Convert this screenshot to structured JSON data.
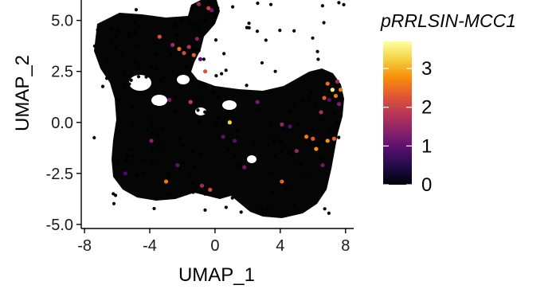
{
  "chart_data": {
    "type": "scatter",
    "xlabel": "UMAP_1",
    "ylabel": "UMAP_2",
    "xlim": [
      -8.2,
      8.5
    ],
    "ylim": [
      -5.2,
      6.0
    ],
    "x_ticks": [
      -8,
      -4,
      0,
      4,
      8
    ],
    "x_tick_labels": [
      "-8",
      "-4",
      "0",
      "4",
      "8"
    ],
    "y_ticks": [
      -5.0,
      -2.5,
      0.0,
      2.5,
      5.0
    ],
    "y_tick_labels": [
      "-5.0",
      "-2.5",
      "0.0",
      "2.5",
      "5.0"
    ],
    "grid": false,
    "background_point_color": "#000000",
    "colorbar": {
      "title": "pRRLSIN-MCC1",
      "min": 0,
      "max": 3.7,
      "ticks": [
        0,
        1,
        2,
        3
      ],
      "tick_labels": [
        "0",
        "1",
        "2",
        "3"
      ],
      "colors": [
        "#000004",
        "#1f0c48",
        "#550f6d",
        "#88226a",
        "#ba3655",
        "#e35933",
        "#f98e09",
        "#f4d142",
        "#fcffa4"
      ]
    },
    "expressing_points": [
      {
        "x": -3.4,
        "y": 4.2,
        "value": 2.2
      },
      {
        "x": -2.6,
        "y": 3.8,
        "value": 1.6
      },
      {
        "x": -2.2,
        "y": 3.6,
        "value": 2.5
      },
      {
        "x": -1.9,
        "y": 3.4,
        "value": 2.1
      },
      {
        "x": -1.6,
        "y": 3.7,
        "value": 1.8
      },
      {
        "x": -1.3,
        "y": 3.3,
        "value": 2.4
      },
      {
        "x": -1.1,
        "y": 4.1,
        "value": 1.4
      },
      {
        "x": -0.9,
        "y": 3.1,
        "value": 1.0
      },
      {
        "x": -0.6,
        "y": 2.5,
        "value": 2.2
      },
      {
        "x": -1.0,
        "y": 5.8,
        "value": 1.5
      },
      {
        "x": -0.4,
        "y": 5.6,
        "value": 2.0
      },
      {
        "x": -0.2,
        "y": 5.5,
        "value": 1.2
      },
      {
        "x": -2.8,
        "y": 1.1,
        "value": 1.3
      },
      {
        "x": -1.5,
        "y": 1.0,
        "value": 1.9
      },
      {
        "x": 0.9,
        "y": 0.0,
        "value": 3.3
      },
      {
        "x": 0.5,
        "y": -0.7,
        "value": 1.0
      },
      {
        "x": 1.2,
        "y": -0.9,
        "value": 0.9
      },
      {
        "x": 2.6,
        "y": 1.0,
        "value": 1.2
      },
      {
        "x": 4.1,
        "y": -0.1,
        "value": 1.5
      },
      {
        "x": 4.6,
        "y": -0.2,
        "value": 0.9
      },
      {
        "x": 5.0,
        "y": -1.4,
        "value": 1.5
      },
      {
        "x": 5.6,
        "y": -0.7,
        "value": 2.6
      },
      {
        "x": 6.0,
        "y": -0.8,
        "value": 2.3
      },
      {
        "x": 6.2,
        "y": -1.3,
        "value": 2.8
      },
      {
        "x": 6.5,
        "y": 0.5,
        "value": 1.7
      },
      {
        "x": 6.7,
        "y": 1.2,
        "value": 2.3
      },
      {
        "x": 6.9,
        "y": 1.9,
        "value": 2.5
      },
      {
        "x": 7.0,
        "y": 1.1,
        "value": 0.9
      },
      {
        "x": 7.2,
        "y": 1.6,
        "value": 3.6
      },
      {
        "x": 7.4,
        "y": 1.3,
        "value": 2.6
      },
      {
        "x": 7.6,
        "y": 0.9,
        "value": 1.3
      },
      {
        "x": 7.7,
        "y": 1.6,
        "value": 2.6
      },
      {
        "x": 7.5,
        "y": 2.0,
        "value": 1.6
      },
      {
        "x": 7.3,
        "y": -0.8,
        "value": 2.4
      },
      {
        "x": 6.6,
        "y": -2.1,
        "value": 1.2
      },
      {
        "x": 6.9,
        "y": -0.9,
        "value": 2.8
      },
      {
        "x": 4.1,
        "y": -2.9,
        "value": 2.4
      },
      {
        "x": 1.8,
        "y": -2.2,
        "value": 1.2
      },
      {
        "x": -3.9,
        "y": -0.9,
        "value": 1.4
      },
      {
        "x": -2.3,
        "y": -2.1,
        "value": 1.0
      },
      {
        "x": -3.0,
        "y": -2.9,
        "value": 2.6
      },
      {
        "x": -5.5,
        "y": -2.5,
        "value": 0.8
      },
      {
        "x": -0.8,
        "y": -3.1,
        "value": 1.6
      },
      {
        "x": -0.3,
        "y": -3.3,
        "value": 2.2
      }
    ]
  }
}
